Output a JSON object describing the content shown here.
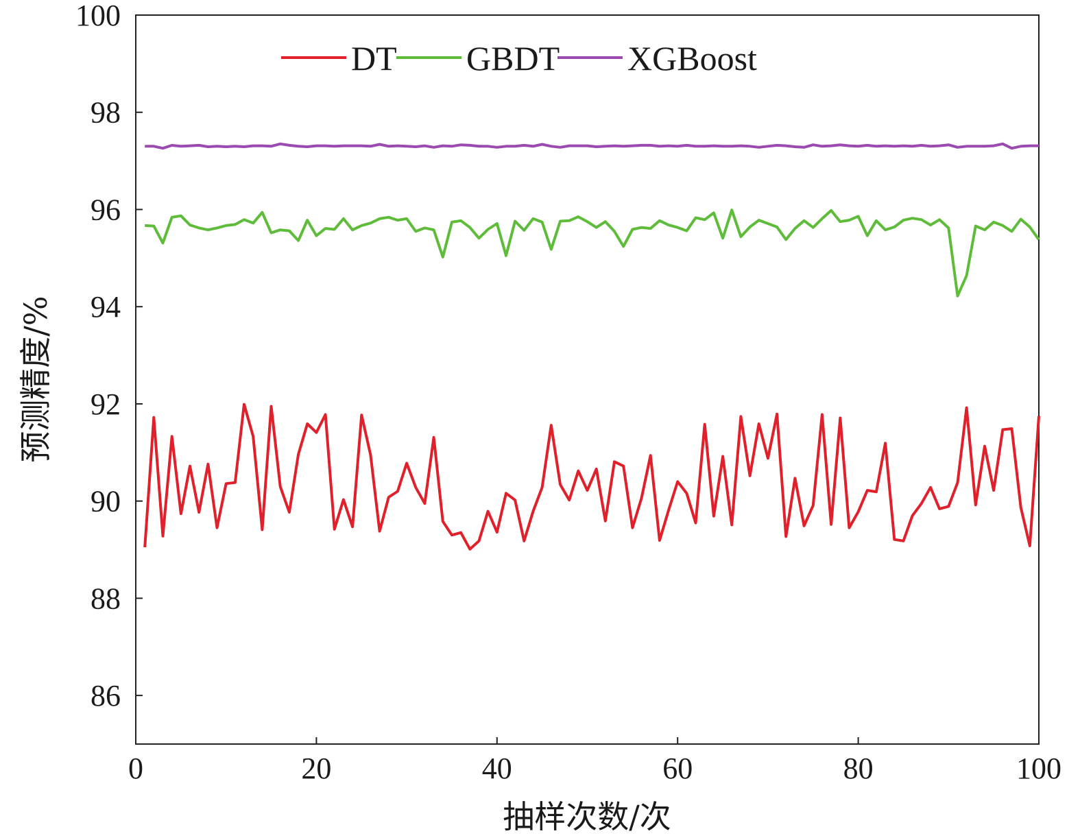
{
  "chart_data": {
    "type": "line",
    "xlabel": "抽样次数/次",
    "ylabel": "预测精度/%",
    "xlim": [
      0,
      100
    ],
    "ylim": [
      85,
      100
    ],
    "xticks": [
      0,
      20,
      40,
      60,
      80,
      100
    ],
    "yticks": [
      86,
      88,
      90,
      92,
      94,
      96,
      98,
      100
    ],
    "grid": false,
    "legend_position": "top",
    "series": [
      {
        "name": "DT",
        "color": "#e0202a",
        "values": [
          89.05,
          91.72,
          89.28,
          91.33,
          89.74,
          90.72,
          89.77,
          90.76,
          89.45,
          90.36,
          90.38,
          91.99,
          91.33,
          89.41,
          91.95,
          90.3,
          89.77,
          90.96,
          91.59,
          91.41,
          91.78,
          89.42,
          90.03,
          89.47,
          91.77,
          90.95,
          89.38,
          90.08,
          90.2,
          90.78,
          90.28,
          89.95,
          91.31,
          89.58,
          89.3,
          89.35,
          89.01,
          89.18,
          89.79,
          89.36,
          90.16,
          90.02,
          89.18,
          89.79,
          90.28,
          91.56,
          90.34,
          90.02,
          90.62,
          90.22,
          90.66,
          89.59,
          90.81,
          90.72,
          89.45,
          90.06,
          90.94,
          89.19,
          89.81,
          90.4,
          90.16,
          89.55,
          91.58,
          89.69,
          90.92,
          89.51,
          91.74,
          90.52,
          91.59,
          90.88,
          91.79,
          89.27,
          90.47,
          89.49,
          89.91,
          91.78,
          89.52,
          91.71,
          89.45,
          89.78,
          90.22,
          90.19,
          91.19,
          89.21,
          89.18,
          89.7,
          89.95,
          90.28,
          89.84,
          89.89,
          90.38,
          91.92,
          89.92,
          91.13,
          90.22,
          91.47,
          91.49,
          89.87,
          89.08,
          91.75
        ]
      },
      {
        "name": "GBDT",
        "color": "#5fbc3a",
        "values": [
          95.67,
          95.66,
          95.31,
          95.84,
          95.87,
          95.68,
          95.62,
          95.58,
          95.62,
          95.67,
          95.69,
          95.79,
          95.72,
          95.94,
          95.52,
          95.58,
          95.56,
          95.36,
          95.78,
          95.46,
          95.61,
          95.59,
          95.81,
          95.58,
          95.67,
          95.72,
          95.81,
          95.84,
          95.78,
          95.81,
          95.55,
          95.62,
          95.58,
          95.02,
          95.74,
          95.77,
          95.63,
          95.41,
          95.59,
          95.71,
          95.05,
          95.76,
          95.57,
          95.81,
          95.74,
          95.18,
          95.76,
          95.77,
          95.85,
          95.75,
          95.63,
          95.75,
          95.55,
          95.24,
          95.59,
          95.63,
          95.61,
          95.77,
          95.68,
          95.63,
          95.56,
          95.83,
          95.79,
          95.93,
          95.41,
          95.99,
          95.44,
          95.64,
          95.78,
          95.71,
          95.64,
          95.38,
          95.61,
          95.77,
          95.63,
          95.81,
          95.98,
          95.75,
          95.78,
          95.86,
          95.46,
          95.77,
          95.58,
          95.64,
          95.78,
          95.82,
          95.79,
          95.68,
          95.79,
          95.62,
          94.22,
          94.64,
          95.66,
          95.58,
          95.74,
          95.67,
          95.55,
          95.8,
          95.64,
          95.38
        ]
      },
      {
        "name": "XGBoost",
        "color": "#9b4ab0",
        "values": [
          97.3,
          97.3,
          97.26,
          97.32,
          97.3,
          97.31,
          97.32,
          97.29,
          97.3,
          97.29,
          97.3,
          97.29,
          97.31,
          97.31,
          97.3,
          97.35,
          97.32,
          97.3,
          97.29,
          97.31,
          97.31,
          97.3,
          97.31,
          97.31,
          97.31,
          97.3,
          97.34,
          97.3,
          97.31,
          97.3,
          97.29,
          97.31,
          97.28,
          97.31,
          97.3,
          97.33,
          97.32,
          97.3,
          97.3,
          97.28,
          97.3,
          97.3,
          97.32,
          97.3,
          97.34,
          97.3,
          97.28,
          97.31,
          97.31,
          97.31,
          97.29,
          97.3,
          97.31,
          97.3,
          97.31,
          97.32,
          97.32,
          97.3,
          97.31,
          97.3,
          97.32,
          97.3,
          97.3,
          97.31,
          97.3,
          97.3,
          97.31,
          97.3,
          97.28,
          97.3,
          97.32,
          97.31,
          97.29,
          97.28,
          97.33,
          97.3,
          97.31,
          97.33,
          97.31,
          97.3,
          97.32,
          97.3,
          97.31,
          97.3,
          97.31,
          97.3,
          97.32,
          97.3,
          97.31,
          97.33,
          97.28,
          97.3,
          97.3,
          97.3,
          97.31,
          97.35,
          97.26,
          97.3,
          97.31,
          97.31
        ]
      }
    ]
  }
}
